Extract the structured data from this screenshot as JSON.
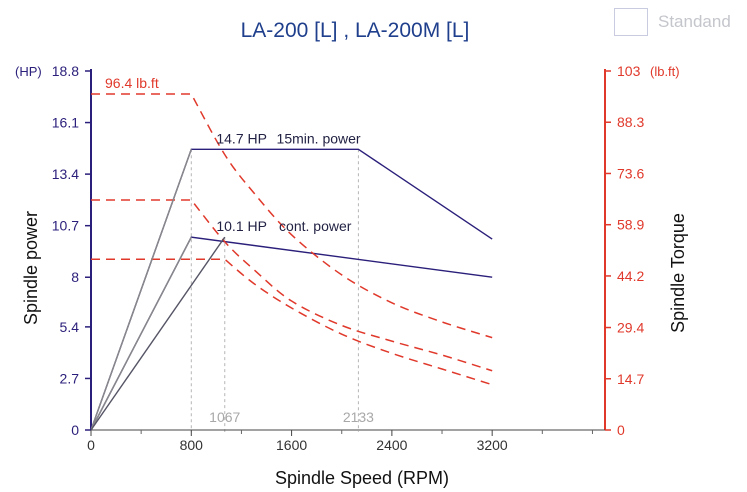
{
  "legend": {
    "label": "Standand"
  },
  "colors": {
    "power": "#2a1f7a",
    "torque": "#e0392b",
    "axis_left": "#2a1f7a",
    "axis_right": "#e0392b",
    "guide": "#b5b5b5",
    "gray_line": "#8a8a8a",
    "text": "#222244",
    "title": "#1f3f8c"
  },
  "chart_data": {
    "type": "line",
    "title": "LA-200 [L] , LA-200M [L]",
    "xlabel": "Spindle Speed (RPM)",
    "ylabel_left": "Spindle power",
    "ylabel_right": "Spindle Torque",
    "left_unit": "(HP)",
    "right_unit": "(lb.ft)",
    "xlim": [
      0,
      4100
    ],
    "ylim_left": [
      0,
      18.8
    ],
    "ylim_right": [
      0,
      103
    ],
    "x_ticks": [
      {
        "value": 0,
        "label": "0"
      },
      {
        "value": 800,
        "label": "800"
      },
      {
        "value": 1600,
        "label": "1600"
      },
      {
        "value": 2400,
        "label": "2400"
      },
      {
        "value": 3200,
        "label": "3200"
      }
    ],
    "x_minor_ticks": [
      400,
      1200,
      2000,
      2800,
      3600,
      4000
    ],
    "x_ticks_extra": [
      {
        "value": 1067,
        "label": "1067"
      },
      {
        "value": 2133,
        "label": "2133"
      }
    ],
    "y_left_ticks": [
      {
        "value": 0,
        "label": "0"
      },
      {
        "value": 2.7,
        "label": "2.7"
      },
      {
        "value": 5.4,
        "label": "5.4"
      },
      {
        "value": 8,
        "label": "8"
      },
      {
        "value": 10.7,
        "label": "10.7"
      },
      {
        "value": 13.4,
        "label": "13.4"
      },
      {
        "value": 16.1,
        "label": "16.1"
      },
      {
        "value": 18.8,
        "label": "18.8"
      }
    ],
    "y_right_ticks": [
      {
        "value": 0,
        "label": "0"
      },
      {
        "value": 14.7,
        "label": "14.7"
      },
      {
        "value": 29.4,
        "label": "29.4"
      },
      {
        "value": 44.2,
        "label": "44.2"
      },
      {
        "value": 58.9,
        "label": "58.9"
      },
      {
        "value": 73.6,
        "label": "73.6"
      },
      {
        "value": 88.3,
        "label": "88.3"
      },
      {
        "value": 103,
        "label": "103"
      }
    ],
    "series": [
      {
        "name": "15min. power",
        "axis": "left",
        "style": "solid",
        "color": "#2a1f7a",
        "points": [
          [
            0,
            0
          ],
          [
            800,
            14.7
          ],
          [
            2133,
            14.7
          ],
          [
            3200,
            10.0
          ]
        ]
      },
      {
        "name": "cont. power",
        "axis": "left",
        "style": "solid",
        "color": "#2a1f7a",
        "points": [
          [
            0,
            0
          ],
          [
            800,
            10.1
          ],
          [
            3200,
            8.0
          ]
        ]
      },
      {
        "axis": "right",
        "style": "dashed",
        "color": "#e0392b",
        "points": [
          [
            0,
            96.4
          ],
          [
            800,
            96.4
          ],
          [
            1067,
            79
          ],
          [
            1300,
            68
          ],
          [
            1600,
            56
          ],
          [
            2000,
            44.5
          ],
          [
            2400,
            36.5
          ],
          [
            2800,
            31
          ],
          [
            3200,
            26.5
          ]
        ]
      },
      {
        "axis": "right",
        "style": "dashed",
        "color": "#e0392b",
        "points": [
          [
            0,
            66
          ],
          [
            800,
            66
          ],
          [
            1067,
            54
          ],
          [
            1300,
            46
          ],
          [
            1600,
            37
          ],
          [
            2000,
            30
          ],
          [
            2400,
            25.5
          ],
          [
            2800,
            21.5
          ],
          [
            3200,
            17
          ]
        ]
      },
      {
        "axis": "right",
        "style": "dashed",
        "color": "#e0392b",
        "points": [
          [
            0,
            49
          ],
          [
            1067,
            49
          ],
          [
            1300,
            42
          ],
          [
            1600,
            35
          ],
          [
            2000,
            27.5
          ],
          [
            2400,
            22
          ],
          [
            2800,
            17.5
          ],
          [
            3200,
            13
          ]
        ]
      },
      {
        "axis": "left",
        "style": "solid",
        "color": "#8a8a8a",
        "points": [
          [
            0,
            0
          ],
          [
            800,
            14.7
          ]
        ]
      },
      {
        "axis": "left",
        "style": "solid",
        "color": "#8a8a8a",
        "points": [
          [
            0,
            0
          ],
          [
            800,
            10.1
          ]
        ]
      },
      {
        "axis": "left",
        "style": "solid",
        "color": "#555566",
        "points": [
          [
            0,
            0
          ],
          [
            1067,
            10.1
          ]
        ]
      }
    ],
    "guides": [
      {
        "x": 800,
        "y": 14.7,
        "axis": "left"
      },
      {
        "x": 1067,
        "y": 10.1,
        "axis": "left"
      },
      {
        "x": 2133,
        "y": 14.7,
        "axis": "left"
      }
    ],
    "annotations": [
      {
        "text": "96.4 lb.ft",
        "x": 0,
        "y": 96.4,
        "axis": "right",
        "color": "#e0392b"
      },
      {
        "text": "14.7 HP",
        "x": 1000,
        "y": 14.7,
        "axis": "left",
        "color": "#222244"
      },
      {
        "text": "15min. power",
        "x": 1480,
        "y": 14.7,
        "axis": "left",
        "color": "#222244"
      },
      {
        "text": "10.1 HP",
        "x": 1000,
        "y": 10.1,
        "axis": "left",
        "color": "#222244"
      },
      {
        "text": "cont. power",
        "x": 1500,
        "y": 10.1,
        "axis": "left",
        "color": "#222244"
      }
    ]
  }
}
